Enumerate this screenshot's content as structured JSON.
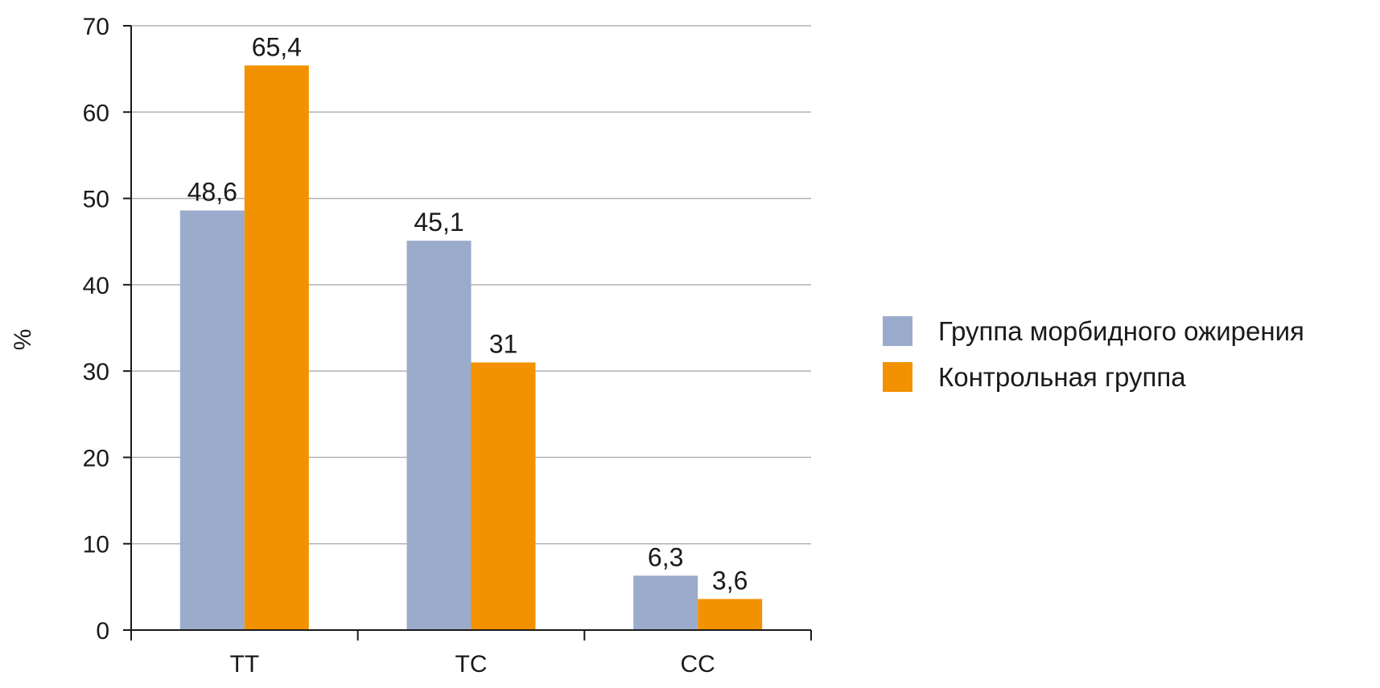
{
  "chart_data": {
    "type": "bar",
    "title": "",
    "xlabel": "",
    "ylabel": "%",
    "ylim": [
      0,
      70
    ],
    "yticks": [
      0,
      10,
      20,
      30,
      40,
      50,
      60,
      70
    ],
    "grid": true,
    "legend_position": "right",
    "categories": [
      "TT",
      "TC",
      "CC"
    ],
    "series": [
      {
        "name": "Группа морбидного ожирения",
        "color": "#9aabcc",
        "values": [
          48.6,
          45.1,
          6.3
        ],
        "labels": [
          "48,6",
          "45,1",
          "6,3"
        ]
      },
      {
        "name": "Контрольная группа",
        "color": "#f39200",
        "values": [
          65.4,
          31,
          3.6
        ],
        "labels": [
          "65,4",
          "31",
          "3,6"
        ]
      }
    ]
  }
}
